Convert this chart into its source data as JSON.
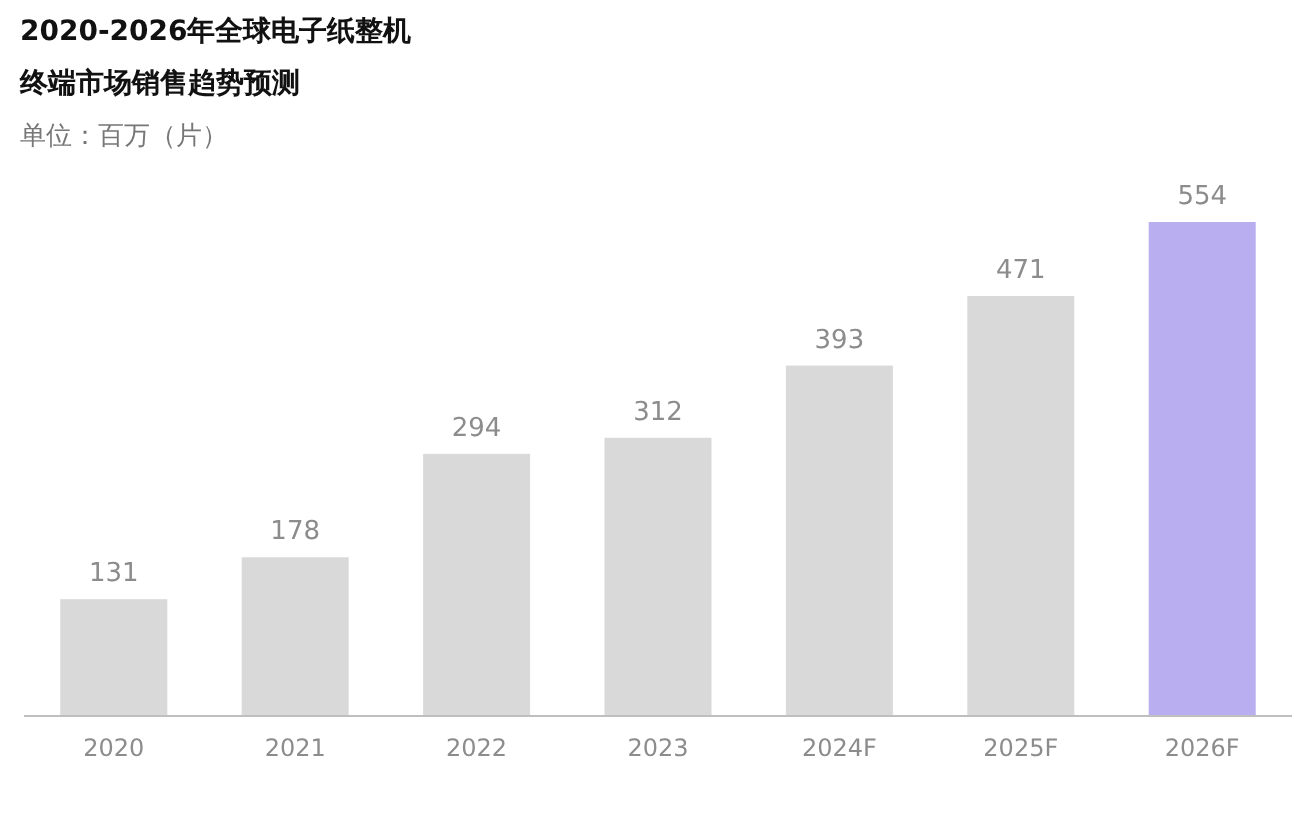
{
  "chart_data": {
    "type": "bar",
    "title": "2020-2026年全球电子纸整机",
    "subtitle": "终端市场销售趋势预测",
    "ylabel": "单位：百万（片）",
    "categories": [
      "2020",
      "2021",
      "2022",
      "2023",
      "2024F",
      "2025F",
      "2026F"
    ],
    "values": [
      131,
      178,
      294,
      312,
      393,
      471,
      554
    ],
    "colors": [
      "#d9d9d9",
      "#d9d9d9",
      "#d9d9d9",
      "#d9d9d9",
      "#d9d9d9",
      "#d9d9d9",
      "#b9aef0"
    ],
    "data_labels": true
  }
}
